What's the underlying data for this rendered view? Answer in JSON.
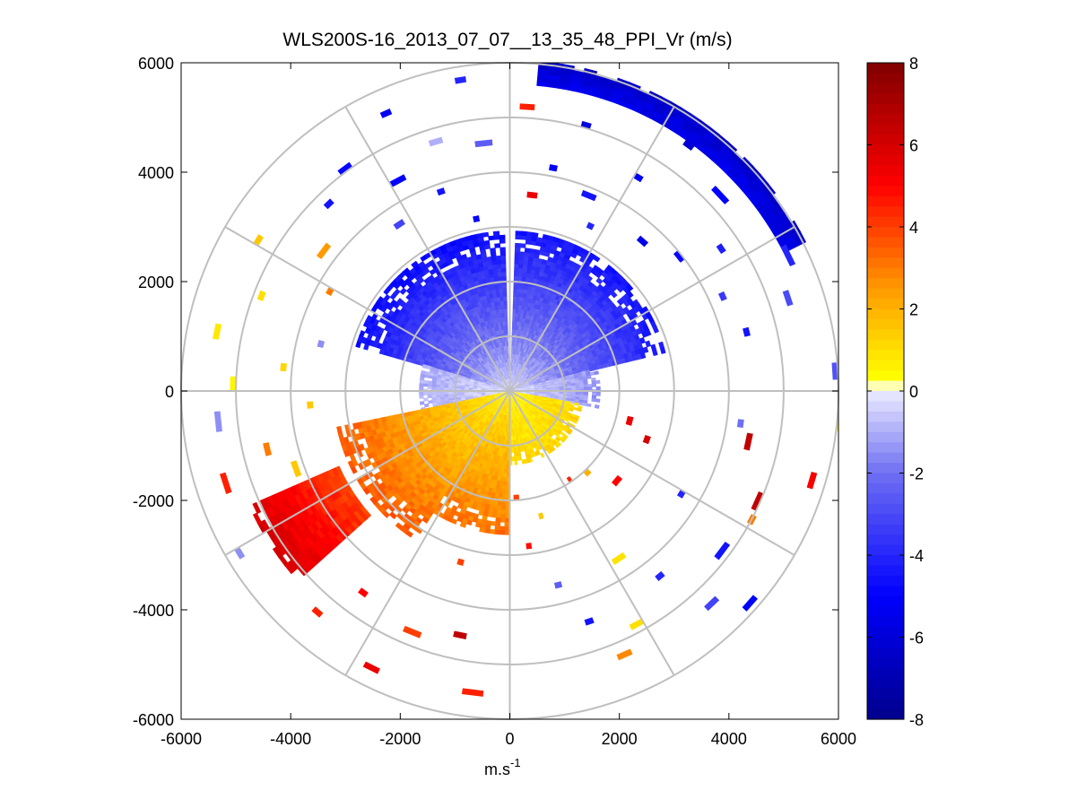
{
  "chart_data": {
    "type": "heatmap",
    "subtype": "polar-ppi",
    "title": "WLS200S-16_2013_07_07__13_35_48_PPI_Vr (m/s)",
    "xlabel": "m.s",
    "xlabel_superscript": "-1",
    "ylabel": "",
    "xlim": [
      -6000,
      6000
    ],
    "ylim": [
      -6000,
      6000
    ],
    "xticks": [
      "-6000",
      "-4000",
      "-2000",
      "0",
      "2000",
      "4000",
      "6000"
    ],
    "xtick_values": [
      -6000,
      -4000,
      -2000,
      0,
      2000,
      4000,
      6000
    ],
    "yticks": [
      "6000",
      "4000",
      "2000",
      "0",
      "-2000",
      "-4000",
      "-6000"
    ],
    "ytick_values": [
      6000,
      4000,
      2000,
      0,
      -2000,
      -4000,
      -6000
    ],
    "range_rings": [
      1000,
      2000,
      3000,
      4000,
      5000,
      6000
    ],
    "spoke_angles_deg": [
      0,
      30,
      60,
      90,
      120,
      150,
      180,
      210,
      240,
      270,
      300,
      330
    ],
    "colorbar": {
      "label_values": [
        8,
        6,
        4,
        2,
        0,
        -2,
        -4,
        -6,
        -8
      ],
      "labels": [
        "8",
        "6",
        "4",
        "2",
        "0",
        "-2",
        "-4",
        "-6",
        "-8"
      ],
      "range": [
        -8,
        8
      ],
      "colormap_stops": [
        {
          "v": -8,
          "color": "#00008c"
        },
        {
          "v": -5,
          "color": "#0000ff"
        },
        {
          "v": -2,
          "color": "#6f6ff2"
        },
        {
          "v": 0,
          "color": "#ececff"
        },
        {
          "v": 0.05,
          "color": "#ffffff"
        },
        {
          "v": 0.3,
          "color": "#ffff00"
        },
        {
          "v": 2.5,
          "color": "#ff9a00"
        },
        {
          "v": 5,
          "color": "#ff0000"
        },
        {
          "v": 8,
          "color": "#800000"
        }
      ]
    },
    "sectors": [
      {
        "az_from": 2,
        "az_to": 75,
        "r_from": 0,
        "r_to": 2900,
        "v_inner": -0.5,
        "v_outer": -4.5
      },
      {
        "az_from": 286,
        "az_to": 358,
        "r_from": 0,
        "r_to": 2900,
        "v_inner": -0.5,
        "v_outer": -4.8
      },
      {
        "az_from": 75,
        "az_to": 100,
        "r_from": 0,
        "r_to": 1600,
        "v_inner": -0.3,
        "v_outer": -1.5
      },
      {
        "az_from": 255,
        "az_to": 286,
        "r_from": 0,
        "r_to": 1600,
        "v_inner": -0.3,
        "v_outer": -1.0
      },
      {
        "az_from": 100,
        "az_to": 180,
        "r_from": 0,
        "r_to": 1300,
        "v_inner": 0.6,
        "v_outer": 1.2
      },
      {
        "az_from": 180,
        "az_to": 212,
        "r_from": 0,
        "r_to": 2600,
        "v_inner": 0.8,
        "v_outer": 3.2
      },
      {
        "az_from": 212,
        "az_to": 258,
        "r_from": 0,
        "r_to": 3200,
        "v_inner": 0.6,
        "v_outer": 3.6
      },
      {
        "az_from": 228,
        "az_to": 245,
        "r_from": 3400,
        "r_to": 5200,
        "v_inner": 4.0,
        "v_outer": 6.0
      },
      {
        "az_from": 5,
        "az_to": 62,
        "r_from": 5600,
        "r_to": 6000,
        "v_inner": -5.5,
        "v_outer": -6.5
      }
    ],
    "scatter_points": [
      {
        "az": 10,
        "r": 4100,
        "v": -5.0
      },
      {
        "az": 20,
        "r": 3800,
        "v": -4.5
      },
      {
        "az": 30,
        "r": 4500,
        "v": -5.2
      },
      {
        "az": 45,
        "r": 5200,
        "v": -5.0
      },
      {
        "az": 55,
        "r": 4600,
        "v": -4.2
      },
      {
        "az": 62,
        "r": 5600,
        "v": -4.0
      },
      {
        "az": 70,
        "r": 5300,
        "v": -3.0
      },
      {
        "az": 75,
        "r": 4400,
        "v": -4.5
      },
      {
        "az": 85,
        "r": 5900,
        "v": -2.8
      },
      {
        "az": 40,
        "r": 3600,
        "v": -5.5
      },
      {
        "az": 50,
        "r": 3900,
        "v": -4.8
      },
      {
        "az": 65,
        "r": 4200,
        "v": -3.5
      },
      {
        "az": 15,
        "r": 5000,
        "v": -5.8
      },
      {
        "az": 35,
        "r": 5500,
        "v": -6.2
      },
      {
        "az": 25,
        "r": 3300,
        "v": -4.0
      },
      {
        "az": 2,
        "r": 5150,
        "v": 4.5
      },
      {
        "az": 5,
        "r": 3550,
        "v": 5.5
      },
      {
        "az": 348,
        "r": 3150,
        "v": -5.0
      },
      {
        "az": 340,
        "r": 3800,
        "v": -4.5
      },
      {
        "az": 330,
        "r": 4300,
        "v": -5.0
      },
      {
        "az": 322,
        "r": 5000,
        "v": -4.8
      },
      {
        "az": 335,
        "r": 5500,
        "v": -5.2
      },
      {
        "az": 350,
        "r": 5700,
        "v": -4.0
      },
      {
        "az": 325,
        "r": 3600,
        "v": -3.2
      },
      {
        "az": 315,
        "r": 4700,
        "v": -4.5
      },
      {
        "az": 342,
        "r": 4700,
        "v": -1.0
      },
      {
        "az": 352,
        "r": 4500,
        "v": -2.5
      },
      {
        "az": 300,
        "r": 5300,
        "v": 1.5
      },
      {
        "az": 305,
        "r": 4200,
        "v": 2.5
      },
      {
        "az": 298,
        "r": 3700,
        "v": 3.0
      },
      {
        "az": 290,
        "r": 4800,
        "v": 1.0
      },
      {
        "az": 280,
        "r": 5400,
        "v": 0.8
      },
      {
        "az": 275,
        "r": 4100,
        "v": 1.2
      },
      {
        "az": 270,
        "r": 5000,
        "v": 0.5
      },
      {
        "az": 265,
        "r": 3600,
        "v": 1.5
      },
      {
        "az": 283,
        "r": 3500,
        "v": -1.5
      },
      {
        "az": 262,
        "r": 5300,
        "v": -1.5
      },
      {
        "az": 255,
        "r": 4500,
        "v": 3.0
      },
      {
        "az": 250,
        "r": 5400,
        "v": 4.5
      },
      {
        "az": 248,
        "r": 4100,
        "v": 1.5
      },
      {
        "az": 238,
        "r": 5700,
        "v": -1.5
      },
      {
        "az": 220,
        "r": 5300,
        "v": 4.5
      },
      {
        "az": 215,
        "r": 4500,
        "v": 5.0
      },
      {
        "az": 205,
        "r": 5600,
        "v": 5.5
      },
      {
        "az": 200,
        "r": 4700,
        "v": 4.0
      },
      {
        "az": 190,
        "r": 4500,
        "v": 6.5
      },
      {
        "az": 185,
        "r": 5500,
        "v": 4.5
      },
      {
        "az": 195,
        "r": 3200,
        "v": 4.0
      },
      {
        "az": 172,
        "r": 2800,
        "v": 4.8
      },
      {
        "az": 165,
        "r": 3600,
        "v": -2.5
      },
      {
        "az": 160,
        "r": 4400,
        "v": -4.5
      },
      {
        "az": 155,
        "r": 5200,
        "v": 2.8
      },
      {
        "az": 150,
        "r": 4800,
        "v": 1.0
      },
      {
        "az": 145,
        "r": 3600,
        "v": 0.9
      },
      {
        "az": 140,
        "r": 4300,
        "v": -4.0
      },
      {
        "az": 135,
        "r": 5300,
        "v": -3.2
      },
      {
        "az": 130,
        "r": 5800,
        "v": -5.0
      },
      {
        "az": 125,
        "r": 4800,
        "v": -4.5
      },
      {
        "az": 120,
        "r": 3600,
        "v": -4.0
      },
      {
        "az": 117,
        "r": 4950,
        "v": 3.0
      },
      {
        "az": 112,
        "r": 4900,
        "v": 6.5
      },
      {
        "az": 108,
        "r": 2600,
        "v": 6.0
      },
      {
        "az": 102,
        "r": 2200,
        "v": 5.5
      },
      {
        "az": 100,
        "r": 4400,
        "v": 6.5
      },
      {
        "az": 105,
        "r": 5700,
        "v": 5.2
      },
      {
        "az": 95,
        "r": 6000,
        "v": 0.5
      },
      {
        "az": 97,
        "r": 4200,
        "v": -2.0
      },
      {
        "az": 128,
        "r": 2500,
        "v": 5.0
      },
      {
        "az": 135,
        "r": 2000,
        "v": 2.0
      },
      {
        "az": 145,
        "r": 1900,
        "v": 4.5
      },
      {
        "az": 175,
        "r": 1900,
        "v": 4.0
      },
      {
        "az": 165,
        "r": 2300,
        "v": 1.5
      }
    ]
  }
}
